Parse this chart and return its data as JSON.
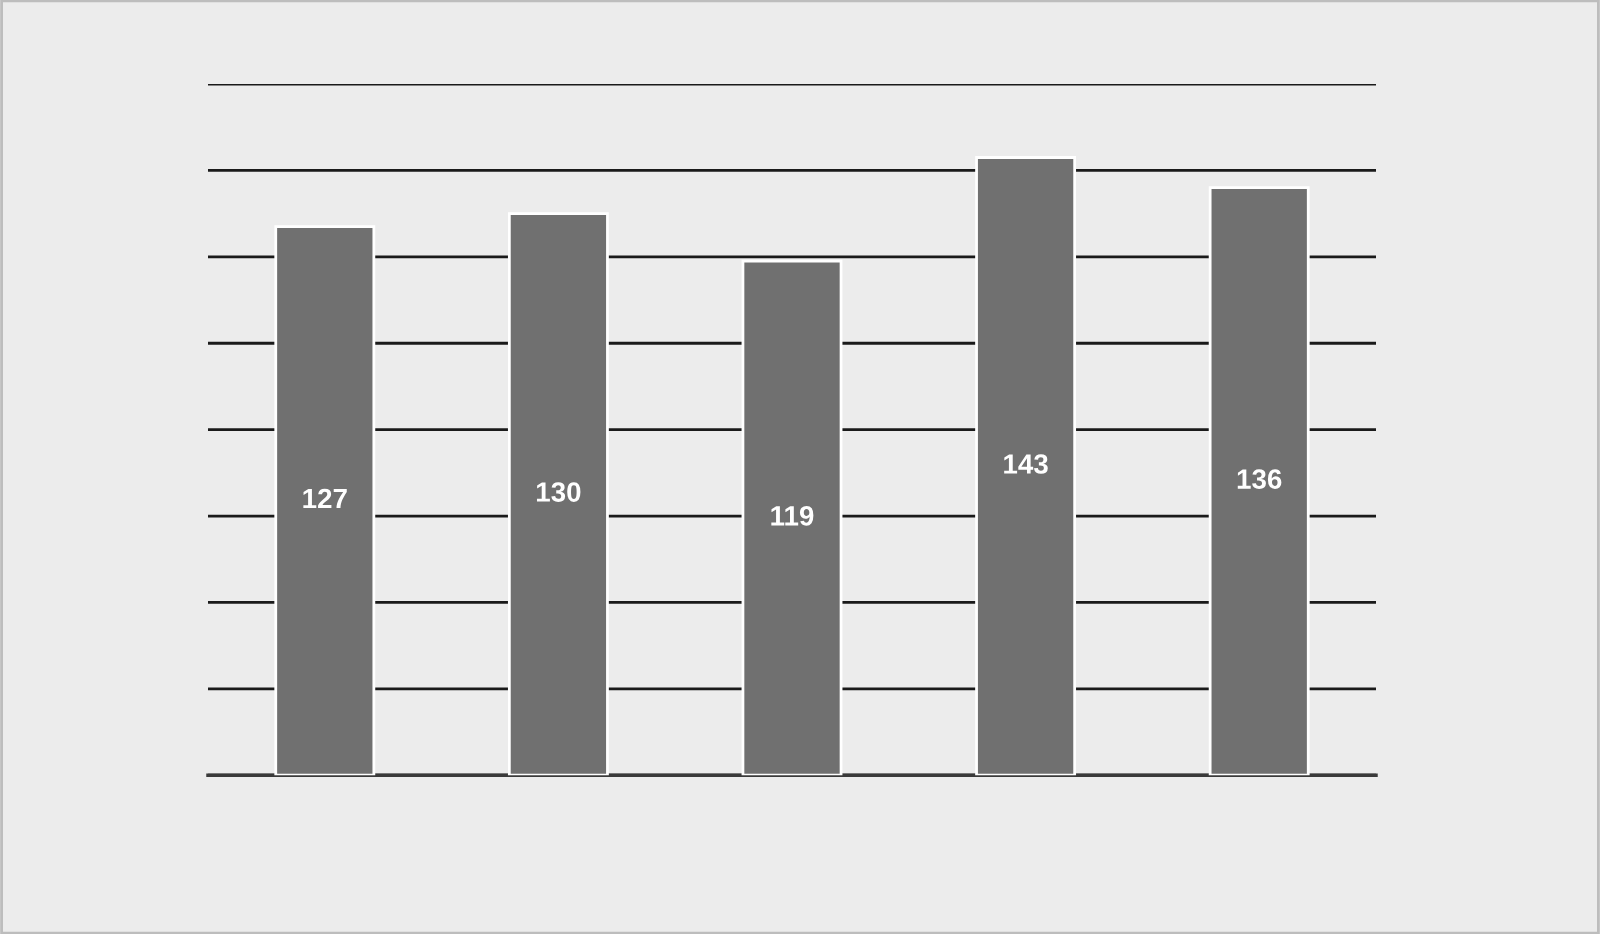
{
  "chart_data": {
    "type": "bar",
    "categories": [
      null,
      null,
      null,
      null,
      null
    ],
    "values": [
      127,
      130,
      119,
      143,
      136
    ],
    "color": "#707070",
    "ylim": [
      0,
      160
    ],
    "yticks": [
      {
        "value": 0,
        "label": null
      },
      {
        "value": 20,
        "label": null
      },
      {
        "value": 40,
        "label": null
      },
      {
        "value": 60,
        "label": null
      },
      {
        "value": 80,
        "label": null
      },
      {
        "value": 100,
        "label": null
      },
      {
        "value": 120,
        "label": null
      },
      {
        "value": 140,
        "label": null
      },
      {
        "value": 160,
        "label": null
      }
    ],
    "grid": "y",
    "data_labels": true
  }
}
